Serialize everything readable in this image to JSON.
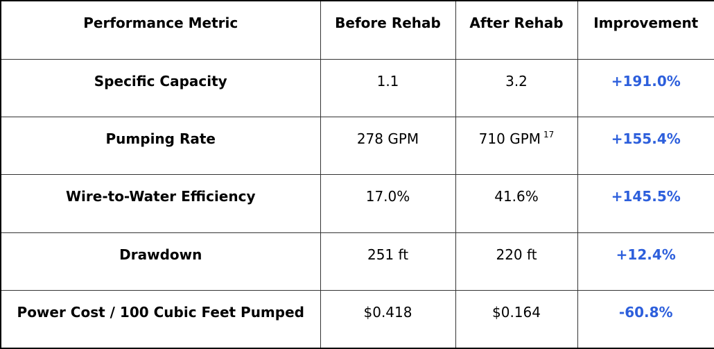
{
  "table": {
    "header": [
      "Performance Metric",
      "Before Rehab",
      "After Rehab",
      "Improvement"
    ],
    "rows": [
      [
        "Specific Capacity",
        "1.1",
        "3.2",
        "+191.0%"
      ],
      [
        "Pumping Rate",
        "278 GPM",
        {
          "text": "710 GPM",
          "ref": "17"
        },
        "+155.4%"
      ],
      [
        "Wire-to-Water Efficiency",
        "17.0%",
        "41.6%",
        "+145.5%"
      ],
      [
        "Drawdown",
        "251 ft",
        "220 ft",
        "+12.4%"
      ],
      [
        "Power Cost / 100 Cubic Feet Pumped",
        "$0.418",
        "$0.164",
        "-60.8%"
      ]
    ]
  }
}
